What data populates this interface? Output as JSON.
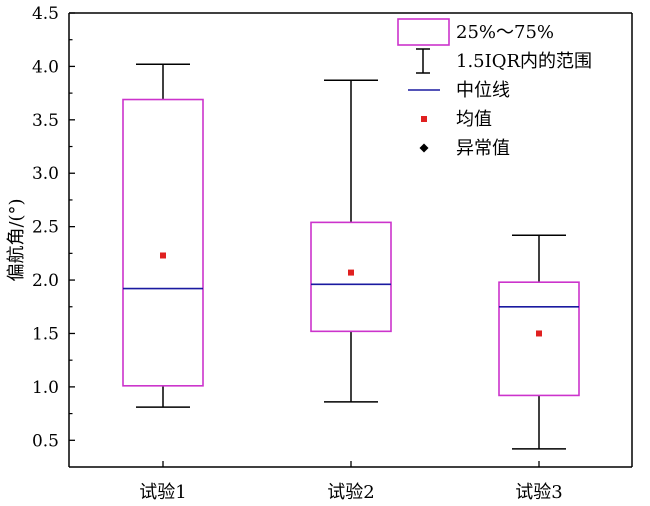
{
  "chart_data": {
    "type": "box",
    "title": "",
    "xlabel": "",
    "ylabel": "偏航角/(°)",
    "ylim": [
      0.25,
      4.5
    ],
    "yticks": [
      0.5,
      1.0,
      1.5,
      2.0,
      2.5,
      3.0,
      3.5,
      4.0,
      4.5
    ],
    "ytick_labels": [
      "0.5",
      "1.0",
      "1.5",
      "2.0",
      "2.5",
      "3.0",
      "3.5",
      "4.0",
      "4.5"
    ],
    "categories": [
      "试验1",
      "试验2",
      "试验3"
    ],
    "boxes": [
      {
        "whisker_low": 0.81,
        "q1": 1.01,
        "median": 1.92,
        "q3": 3.69,
        "whisker_high": 4.02,
        "mean": 2.23
      },
      {
        "whisker_low": 0.86,
        "q1": 1.52,
        "median": 1.96,
        "q3": 2.54,
        "whisker_high": 3.87,
        "mean": 2.07
      },
      {
        "whisker_low": 0.42,
        "q1": 0.92,
        "median": 1.75,
        "q3": 1.98,
        "whisker_high": 2.42,
        "mean": 1.5
      }
    ],
    "grid": false,
    "legend_position": "top-right",
    "legend": [
      {
        "key": "box",
        "label": "25%～75%"
      },
      {
        "key": "whisker",
        "label": "1.5IQR内的范围"
      },
      {
        "key": "median",
        "label": "中位线"
      },
      {
        "key": "mean",
        "label": "均值"
      },
      {
        "key": "outlier",
        "label": "异常值"
      }
    ],
    "colors": {
      "box": "#cc33cc",
      "median": "#1a1aa0",
      "mean": "#e02020",
      "whisker": "#000000",
      "axis": "#000000",
      "outlier": "#000000"
    }
  }
}
